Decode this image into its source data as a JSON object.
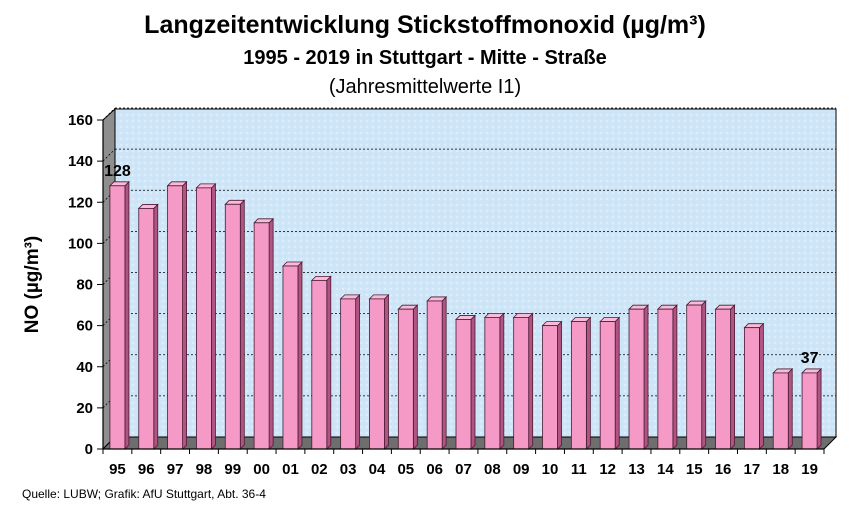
{
  "title": "Langzeitentwicklung Stickstoffmonoxid (µg/m³)",
  "subtitle": "1995 - 2019 in Stuttgart - Mitte - Straße",
  "subtitle2": "(Jahresmittelwerte I1)",
  "source": "Quelle: LUBW; Grafik: AfU Stuttgart, Abt. 36-4",
  "chart_data": {
    "type": "bar",
    "categories": [
      "95",
      "96",
      "97",
      "98",
      "99",
      "00",
      "01",
      "02",
      "03",
      "04",
      "05",
      "06",
      "07",
      "08",
      "09",
      "10",
      "11",
      "12",
      "13",
      "14",
      "15",
      "16",
      "17",
      "18",
      "19"
    ],
    "values": [
      128,
      117,
      128,
      127,
      119,
      110,
      89,
      82,
      73,
      73,
      68,
      72,
      63,
      64,
      64,
      60,
      62,
      62,
      68,
      68,
      70,
      68,
      59,
      37,
      37
    ],
    "ylabel": "NO (µg/m³)",
    "ylim": [
      0,
      160
    ],
    "yticks": [
      0,
      20,
      40,
      60,
      80,
      100,
      120,
      140,
      160
    ],
    "data_labels": [
      {
        "index": 0,
        "text": "128"
      },
      {
        "index": 24,
        "text": "37"
      }
    ],
    "grid": true,
    "colors": {
      "bar_front": "#f59ac6",
      "bar_side": "#b05582",
      "bar_top": "#f8bcd9",
      "bar_edge": "#4a1a33",
      "plot_background": "#cfe6f8",
      "wall": "#8e8e8e",
      "floor": "#6e6e6e",
      "gridline": "#000000"
    }
  }
}
